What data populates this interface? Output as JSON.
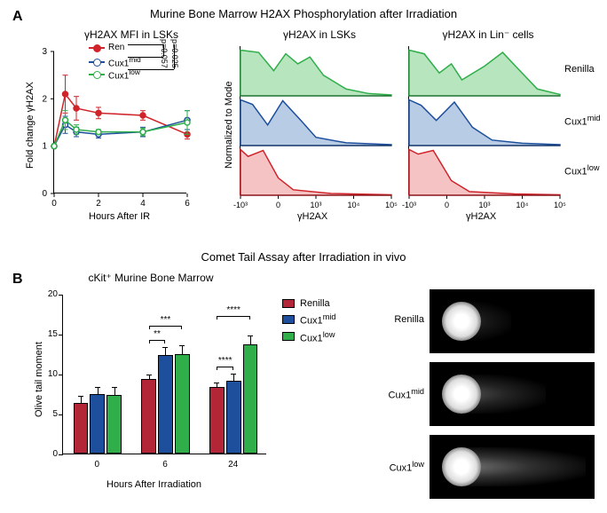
{
  "panelA": {
    "label": "A",
    "title": "Murine Bone Marrow H2AX Phosphorylation after Irradiation",
    "line_chart": {
      "type": "line",
      "subtitle": "γH2AX MFI in LSKs",
      "xlabel": "Hours After IR",
      "ylabel": "Fold change γH2AX",
      "xlim": [
        0,
        6
      ],
      "xticks": [
        0,
        2,
        4,
        6
      ],
      "ylim": [
        0,
        3
      ],
      "yticks": [
        0,
        1,
        2,
        3
      ],
      "x_values": [
        0,
        0.5,
        1,
        2,
        4,
        6
      ],
      "series": [
        {
          "name": "Ren",
          "color": "#d0232a",
          "y": [
            1.0,
            2.1,
            1.8,
            1.7,
            1.65,
            1.25
          ],
          "marker_filled": true
        },
        {
          "name": "Cux1mid",
          "color": "#1d4f9c",
          "y": [
            1.0,
            1.45,
            1.3,
            1.25,
            1.3,
            1.55
          ],
          "marker_filled": false
        },
        {
          "name": "Cux1low",
          "color": "#2fae4a",
          "y": [
            1.0,
            1.55,
            1.35,
            1.3,
            1.3,
            1.5
          ],
          "marker_filled": false
        }
      ],
      "errors": {
        "Ren": [
          0,
          0.4,
          0.25,
          0.12,
          0.1,
          0.1
        ],
        "Cux1mid": [
          0,
          0.18,
          0.1,
          0.08,
          0.1,
          0.2
        ],
        "Cux1low": [
          0,
          0.2,
          0.1,
          0.05,
          0.08,
          0.25
        ]
      },
      "legend": [
        "Ren",
        "Cux1mid",
        "Cux1low"
      ],
      "pvalues": [
        {
          "pair": [
            "Ren",
            "Cux1mid"
          ],
          "text": "p=0.057"
        },
        {
          "pair": [
            "Ren",
            "Cux1low"
          ],
          "text": "p=0.025"
        }
      ],
      "background_color": "#ffffff",
      "line_width": 1.5,
      "marker_size": 6,
      "label_fontsize": 11,
      "tick_fontsize": 10
    },
    "histograms": [
      {
        "title": "γH2AX in LSKs",
        "xlabel": "γH2AX",
        "ylabel": "Normalized to Mode",
        "xticks": [
          "-10³",
          "0",
          "10³",
          "10⁴",
          "10⁵"
        ],
        "rows": [
          {
            "name": "Renilla",
            "color": "#2fae4a",
            "fill": "#b7e5bd"
          },
          {
            "name": "Cux1mid",
            "color": "#1d4f9c",
            "fill": "#b8cce6"
          },
          {
            "name": "Cux1low",
            "color": "#d0232a",
            "fill": "#f6c3c5"
          }
        ],
        "label_side": "none"
      },
      {
        "title": "γH2AX in Lin⁻ cells",
        "xlabel": "γH2AX",
        "ylabel": "",
        "xticks": [
          "-10³",
          "0",
          "10³",
          "10⁴",
          "10⁵"
        ],
        "rows": [
          {
            "name": "Renilla",
            "color": "#2fae4a",
            "fill": "#b7e5bd"
          },
          {
            "name": "Cux1mid",
            "color": "#1d4f9c",
            "fill": "#b8cce6"
          },
          {
            "name": "Cux1low",
            "color": "#d0232a",
            "fill": "#f6c3c5"
          }
        ],
        "label_side": "right"
      }
    ]
  },
  "panelB": {
    "label": "B",
    "title": "Comet Tail Assay after Irradiation in vivo",
    "bar_chart": {
      "type": "bar",
      "subtitle": "cKit⁺ Murine Bone Marrow",
      "xlabel": "Hours After Irradiation",
      "ylabel": "Olive tail moment",
      "ylim": [
        0,
        20
      ],
      "yticks": [
        0,
        5,
        10,
        15,
        20
      ],
      "categories": [
        "0",
        "6",
        "24"
      ],
      "series": [
        {
          "name": "Renilla",
          "color": "#b22637",
          "values": [
            6.3,
            9.3,
            8.3
          ],
          "errors": [
            1.0,
            0.7,
            0.7
          ]
        },
        {
          "name": "Cux1mid",
          "color": "#1d4f9c",
          "values": [
            7.4,
            12.3,
            9.1
          ],
          "errors": [
            1.1,
            1.1,
            1.0
          ]
        },
        {
          "name": "Cux1low",
          "color": "#2fae4a",
          "values": [
            7.3,
            12.5,
            13.7
          ],
          "errors": [
            1.1,
            1.2,
            1.2
          ]
        }
      ],
      "significance": [
        {
          "group": "6",
          "pairs": [
            [
              "Renilla",
              "Cux1mid",
              "**"
            ],
            [
              "Renilla",
              "Cux1low",
              "***"
            ]
          ]
        },
        {
          "group": "24",
          "pairs": [
            [
              "Renilla",
              "Cux1mid",
              "****"
            ],
            [
              "Renilla",
              "Cux1low",
              "****"
            ]
          ]
        }
      ],
      "bar_width": 0.7,
      "label_fontsize": 11,
      "tick_fontsize": 10,
      "background_color": "#ffffff"
    },
    "legend": [
      {
        "name": "Renilla",
        "color": "#b22637"
      },
      {
        "name": "Cux1mid",
        "color": "#1d4f9c"
      },
      {
        "name": "Cux1low",
        "color": "#2fae4a"
      }
    ],
    "comet_images": [
      {
        "name": "Renilla",
        "tail_intensity": 0.15
      },
      {
        "name": "Cux1mid",
        "tail_intensity": 0.45
      },
      {
        "name": "Cux1low",
        "tail_intensity": 0.8
      }
    ]
  }
}
